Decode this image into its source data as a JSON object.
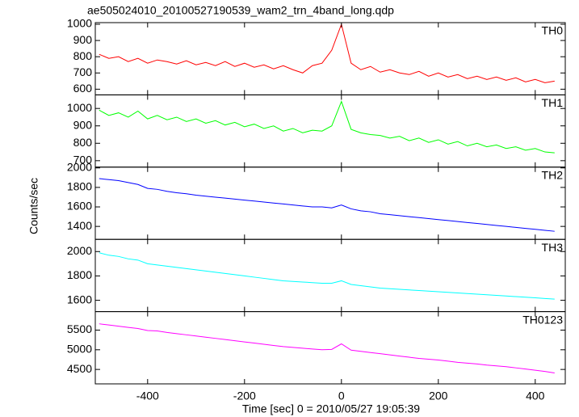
{
  "title": "ae505024010_20100527190539_wam2_trn_4band_long.qdp",
  "x_label": "Time [sec] 0 = 2010/05/27 19:05:39",
  "y_label": "Counts/sec",
  "chart_data": [
    {
      "type": "line",
      "label": "TH0",
      "color": "#ff0000",
      "x": [
        -500,
        -480,
        -460,
        -440,
        -420,
        -400,
        -380,
        -360,
        -340,
        -320,
        -300,
        -280,
        -260,
        -240,
        -220,
        -200,
        -180,
        -160,
        -140,
        -120,
        -100,
        -80,
        -60,
        -40,
        -20,
        0,
        20,
        40,
        60,
        80,
        100,
        120,
        140,
        160,
        180,
        200,
        220,
        240,
        260,
        280,
        300,
        320,
        340,
        360,
        380,
        400,
        420,
        440
      ],
      "values": [
        815,
        790,
        800,
        770,
        790,
        760,
        780,
        770,
        755,
        775,
        750,
        765,
        745,
        770,
        740,
        760,
        735,
        750,
        725,
        745,
        720,
        700,
        745,
        760,
        840,
        1000,
        760,
        720,
        740,
        705,
        720,
        700,
        690,
        710,
        680,
        700,
        675,
        690,
        665,
        680,
        660,
        675,
        655,
        670,
        645,
        660,
        640,
        650
      ],
      "xlim": [
        -508,
        462
      ],
      "xticks": [
        -400,
        -200,
        0,
        200,
        400
      ],
      "ylim": [
        565,
        1010
      ],
      "yticks": [
        600,
        700,
        800,
        900,
        1000
      ]
    },
    {
      "type": "line",
      "label": "TH1",
      "color": "#00ff00",
      "x": [
        -500,
        -480,
        -460,
        -440,
        -420,
        -400,
        -380,
        -360,
        -340,
        -320,
        -300,
        -280,
        -260,
        -240,
        -220,
        -200,
        -180,
        -160,
        -140,
        -120,
        -100,
        -80,
        -60,
        -40,
        -20,
        0,
        20,
        40,
        60,
        80,
        100,
        120,
        140,
        160,
        180,
        200,
        220,
        240,
        260,
        280,
        300,
        320,
        340,
        360,
        380,
        400,
        420,
        440
      ],
      "values": [
        990,
        960,
        975,
        950,
        985,
        940,
        960,
        935,
        950,
        925,
        940,
        915,
        930,
        905,
        920,
        895,
        910,
        885,
        900,
        870,
        885,
        860,
        875,
        870,
        900,
        1040,
        880,
        860,
        850,
        845,
        830,
        840,
        815,
        830,
        805,
        820,
        795,
        810,
        785,
        800,
        780,
        790,
        770,
        780,
        760,
        770,
        750,
        745
      ],
      "xlim": [
        -508,
        462
      ],
      "xticks": [
        -400,
        -200,
        0,
        200,
        400
      ],
      "ylim": [
        663,
        1078
      ],
      "yticks": [
        700,
        800,
        900,
        1000
      ]
    },
    {
      "type": "line",
      "label": "TH2",
      "color": "#0000ff",
      "x": [
        -500,
        -480,
        -460,
        -440,
        -420,
        -400,
        -380,
        -360,
        -340,
        -320,
        -300,
        -280,
        -260,
        -240,
        -220,
        -200,
        -180,
        -160,
        -140,
        -120,
        -100,
        -80,
        -60,
        -40,
        -20,
        0,
        20,
        40,
        60,
        80,
        100,
        120,
        140,
        160,
        180,
        200,
        220,
        240,
        260,
        280,
        300,
        320,
        340,
        360,
        380,
        400,
        420,
        440
      ],
      "values": [
        1890,
        1880,
        1870,
        1850,
        1830,
        1790,
        1780,
        1760,
        1745,
        1735,
        1720,
        1710,
        1700,
        1690,
        1680,
        1670,
        1660,
        1650,
        1640,
        1630,
        1620,
        1610,
        1600,
        1600,
        1590,
        1620,
        1580,
        1560,
        1550,
        1530,
        1520,
        1510,
        1500,
        1490,
        1480,
        1470,
        1460,
        1450,
        1440,
        1430,
        1420,
        1410,
        1400,
        1390,
        1380,
        1370,
        1360,
        1350
      ],
      "xlim": [
        -508,
        462
      ],
      "xticks": [
        -400,
        -200,
        0,
        200,
        400
      ],
      "ylim": [
        1267,
        2008
      ],
      "yticks": [
        1400,
        1600,
        1800,
        2000
      ]
    },
    {
      "type": "line",
      "label": "TH3",
      "color": "#00ffff",
      "x": [
        -500,
        -480,
        -460,
        -440,
        -420,
        -400,
        -380,
        -360,
        -340,
        -320,
        -300,
        -280,
        -260,
        -240,
        -220,
        -200,
        -180,
        -160,
        -140,
        -120,
        -100,
        -80,
        -60,
        -40,
        -20,
        0,
        20,
        40,
        60,
        80,
        100,
        120,
        140,
        160,
        180,
        200,
        220,
        240,
        260,
        280,
        300,
        320,
        340,
        360,
        380,
        400,
        420,
        440
      ],
      "values": [
        1990,
        1970,
        1960,
        1940,
        1930,
        1900,
        1890,
        1880,
        1870,
        1860,
        1850,
        1840,
        1830,
        1820,
        1810,
        1800,
        1790,
        1780,
        1770,
        1760,
        1755,
        1750,
        1745,
        1740,
        1740,
        1760,
        1730,
        1720,
        1710,
        1700,
        1695,
        1690,
        1685,
        1680,
        1675,
        1670,
        1665,
        1660,
        1655,
        1650,
        1645,
        1640,
        1635,
        1630,
        1625,
        1620,
        1615,
        1610
      ],
      "xlim": [
        -508,
        462
      ],
      "xticks": [
        -400,
        -200,
        0,
        200,
        400
      ],
      "ylim": [
        1507,
        2100
      ],
      "yticks": [
        1600,
        1800,
        2000
      ]
    },
    {
      "type": "line",
      "label": "TH0123",
      "color": "#ff00ff",
      "x": [
        -500,
        -480,
        -460,
        -440,
        -420,
        -400,
        -380,
        -360,
        -340,
        -320,
        -300,
        -280,
        -260,
        -240,
        -220,
        -200,
        -180,
        -160,
        -140,
        -120,
        -100,
        -80,
        -60,
        -40,
        -20,
        0,
        20,
        40,
        60,
        80,
        100,
        120,
        140,
        160,
        180,
        200,
        220,
        240,
        260,
        280,
        300,
        320,
        340,
        360,
        380,
        400,
        420,
        440
      ],
      "values": [
        5660,
        5630,
        5600,
        5570,
        5540,
        5490,
        5480,
        5440,
        5410,
        5380,
        5350,
        5320,
        5290,
        5260,
        5230,
        5200,
        5170,
        5140,
        5110,
        5080,
        5060,
        5040,
        5020,
        5000,
        5010,
        5150,
        4990,
        4960,
        4930,
        4900,
        4870,
        4840,
        4810,
        4780,
        4760,
        4740,
        4710,
        4680,
        4660,
        4640,
        4610,
        4590,
        4570,
        4540,
        4510,
        4480,
        4450,
        4410
      ],
      "xlim": [
        -508,
        462
      ],
      "xticks": [
        -400,
        -200,
        0,
        200,
        400
      ],
      "ylim": [
        4133,
        5970
      ],
      "yticks": [
        4500,
        5000,
        5500
      ]
    }
  ]
}
